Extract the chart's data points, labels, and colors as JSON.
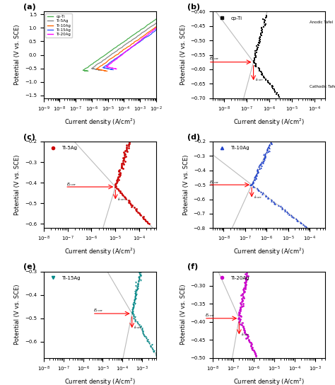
{
  "panel_labels": [
    "(a)",
    "(b)",
    "(c)",
    "(d)",
    "(e)",
    "(f)"
  ],
  "legend_a": [
    "cp-Ti",
    "Ti-5Ag",
    "Ti-10Ag",
    "Ti-15Ag",
    "Ti-20Ag"
  ],
  "xlabel": "Current density (A/cm$^2$)",
  "ylabel": "Potential (V vs. SCE)",
  "panels": {
    "a": {
      "xlim": [
        1e-09,
        0.01
      ],
      "ylim": [
        -1.6,
        1.6
      ],
      "yticks": 0.5
    },
    "b": {
      "E_corr": -0.575,
      "i_corr": 2e-07,
      "xlim_low": 3e-09,
      "xlim_high": 0.0003,
      "ylim": [
        -0.7,
        -0.4
      ],
      "ytick": 0.05,
      "label": "cp-Ti",
      "color": "#111111",
      "marker": "s"
    },
    "c": {
      "E_corr": -0.42,
      "i_corr": 1e-05,
      "xlim_low": 1e-08,
      "xlim_high": 0.0005,
      "ylim": [
        -0.62,
        -0.2
      ],
      "ytick": 0.1,
      "label": "Ti-5Ag",
      "color": "#CC0000",
      "marker": "o"
    },
    "d": {
      "E_corr": -0.5,
      "i_corr": 2e-07,
      "xlim_low": 3e-09,
      "xlim_high": 0.0005,
      "ylim": [
        -0.8,
        -0.2
      ],
      "ytick": 0.1,
      "label": "Ti-10Ag",
      "color": "#2244CC",
      "marker": "^"
    },
    "e": {
      "E_corr": -0.48,
      "i_corr": 0.0003,
      "xlim_low": 1e-08,
      "xlim_high": 0.005,
      "ylim": [
        -0.67,
        -0.3
      ],
      "ytick": 0.1,
      "label": "Ti-15Ag",
      "color": "#008888",
      "marker": "v"
    },
    "f": {
      "E_corr": -0.39,
      "i_corr": 2e-07,
      "xlim_low": 1e-08,
      "xlim_high": 0.003,
      "ylim": [
        -0.5,
        -0.26
      ],
      "ytick": 0.05,
      "label": "Ti-20Ag",
      "color": "#CC00CC",
      "marker": "o"
    }
  }
}
